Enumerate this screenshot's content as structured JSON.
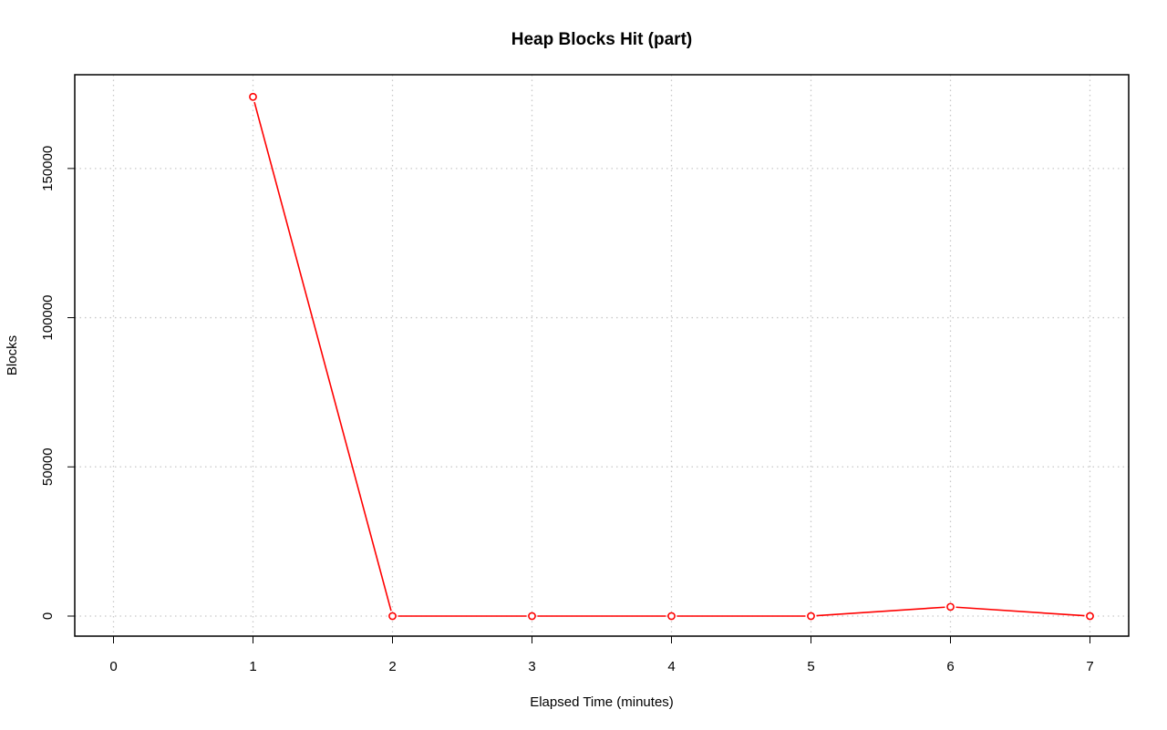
{
  "chart_data": {
    "type": "line",
    "title": "Heap Blocks Hit (part)",
    "xlabel": "Elapsed Time (minutes)",
    "ylabel": "Blocks",
    "xlim": [
      0,
      7
    ],
    "ylim": [
      0,
      175000
    ],
    "x_ticks": [
      0,
      1,
      2,
      3,
      4,
      5,
      6,
      7
    ],
    "x_tick_labels": [
      "0",
      "1",
      "2",
      "3",
      "4",
      "5",
      "6",
      "7"
    ],
    "y_ticks": [
      0,
      50000,
      100000,
      150000
    ],
    "y_tick_labels": [
      "0",
      "50000",
      "100000",
      "150000"
    ],
    "grid": true,
    "grid_style": "dotted",
    "series": [
      {
        "x": [
          1,
          2,
          3,
          4,
          5,
          6,
          7
        ],
        "values": [
          174000,
          0,
          0,
          0,
          0,
          3100,
          0
        ],
        "color": "#ff0000",
        "marker": "open-circle"
      }
    ]
  }
}
